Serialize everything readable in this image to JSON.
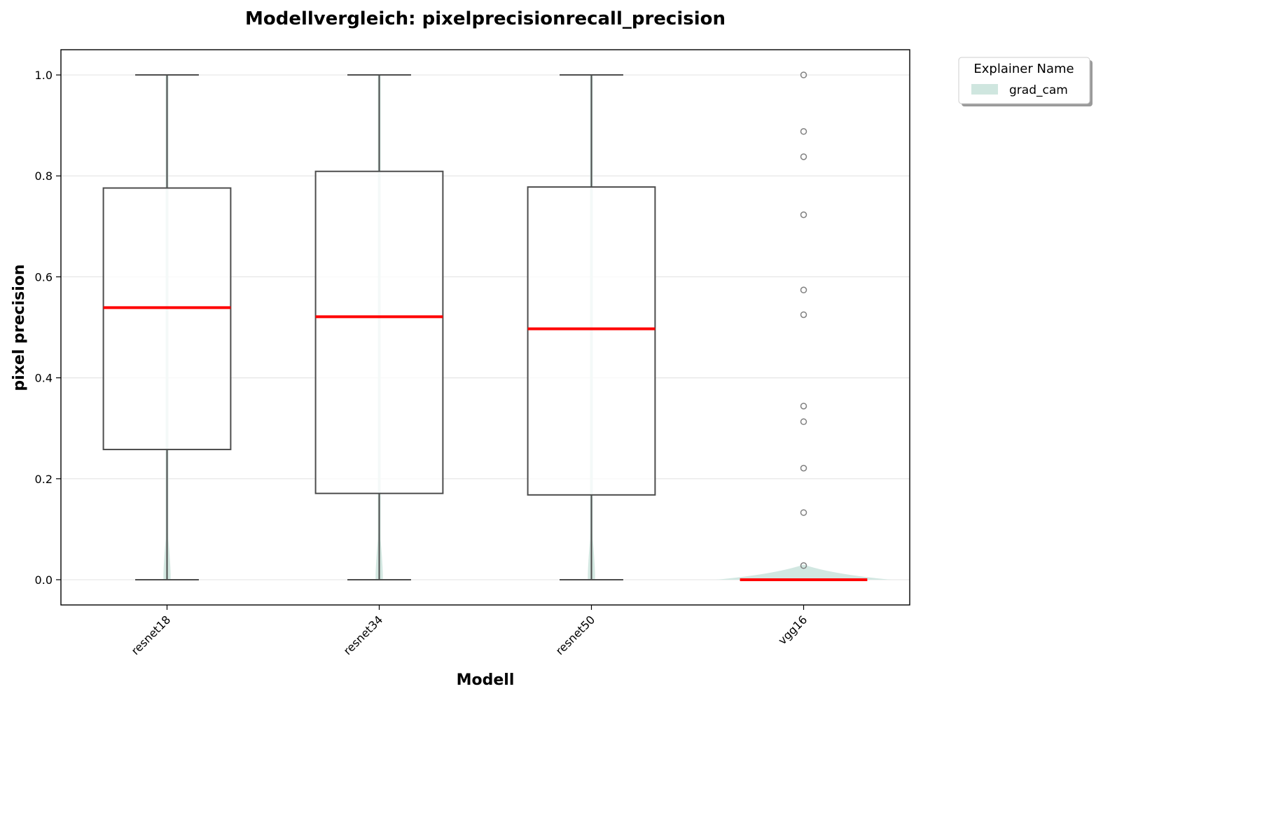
{
  "chart_data": {
    "type": "box",
    "title": "Modellvergleich: pixelprecisionrecall_precision",
    "xlabel": "Modell",
    "ylabel": "pixel precision",
    "ylim": [
      -0.05,
      1.05
    ],
    "yticks": [
      0.0,
      0.2,
      0.4,
      0.6,
      0.8,
      1.0
    ],
    "ytick_labels": [
      "0.0",
      "0.2",
      "0.4",
      "0.6",
      "0.8",
      "1.0"
    ],
    "grid": "horizontal",
    "categories": [
      "resnet18",
      "resnet34",
      "resnet50",
      "vgg16"
    ],
    "legend": {
      "title": "Explainer Name",
      "placement": "outside-top-right",
      "entries": [
        {
          "label": "grad_cam",
          "color": "#cfe6df"
        }
      ]
    },
    "series": [
      {
        "name": "grad_cam",
        "boxes": [
          {
            "category": "resnet18",
            "whisker_low": 0.0,
            "q1": 0.258,
            "median": 0.539,
            "q3": 0.776,
            "whisker_high": 1.0,
            "outliers": []
          },
          {
            "category": "resnet34",
            "whisker_low": 0.0,
            "q1": 0.171,
            "median": 0.521,
            "q3": 0.809,
            "whisker_high": 1.0,
            "outliers": []
          },
          {
            "category": "resnet50",
            "whisker_low": 0.0,
            "q1": 0.168,
            "median": 0.497,
            "q3": 0.778,
            "whisker_high": 1.0,
            "outliers": []
          },
          {
            "category": "vgg16",
            "whisker_low": 0.0,
            "q1": 0.0,
            "median": 0.0,
            "q3": 0.0,
            "whisker_high": 0.0,
            "outliers": [
              0.028,
              0.133,
              0.221,
              0.313,
              0.344,
              0.525,
              0.574,
              0.723,
              0.838,
              0.888,
              1.0
            ]
          }
        ]
      }
    ],
    "colors": {
      "median": "#ff0000",
      "box_edge": "#4d4d4d",
      "violin_fill": "#cfe6df",
      "outlier_edge": "#808080",
      "grid": "#e6e6e6"
    }
  }
}
